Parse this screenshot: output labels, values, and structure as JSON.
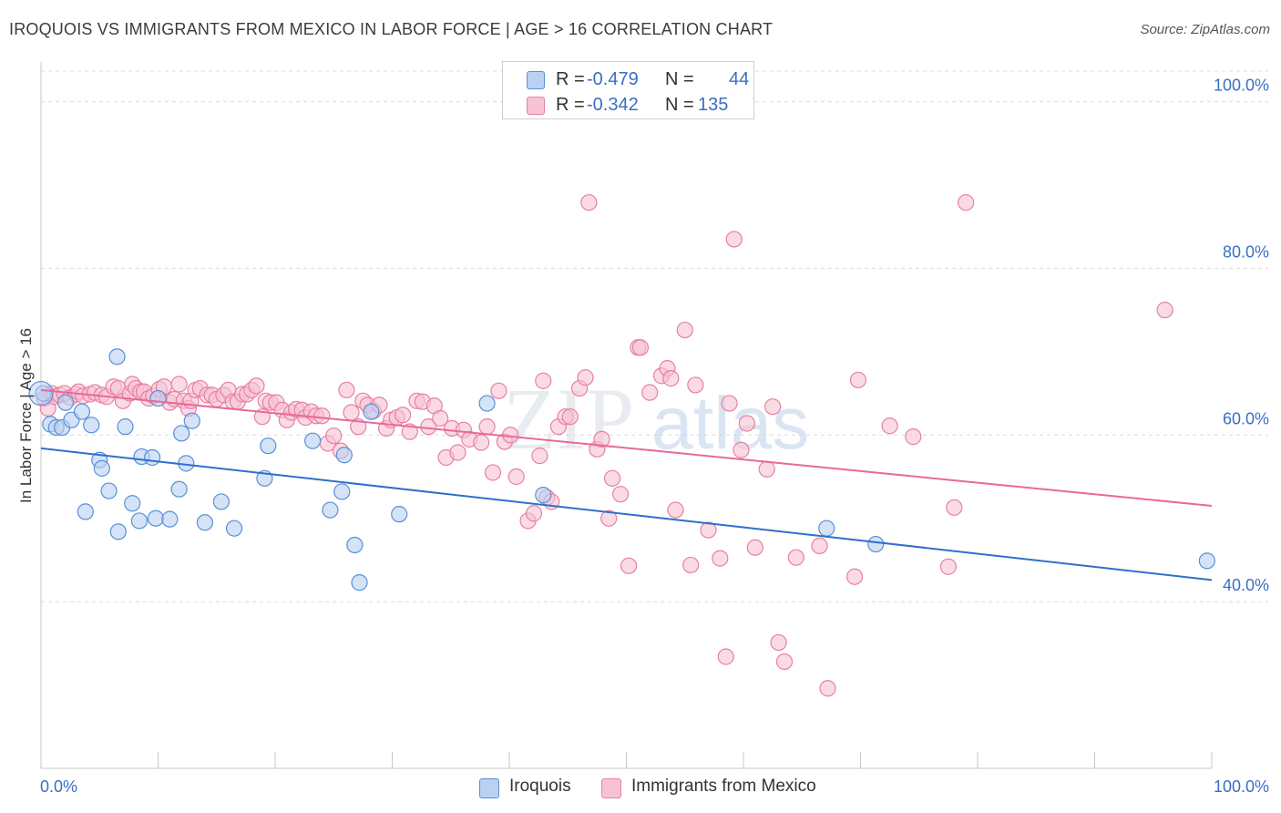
{
  "title": "IROQUOIS VS IMMIGRANTS FROM MEXICO IN LABOR FORCE | AGE > 16 CORRELATION CHART",
  "source": "Source: ZipAtlas.com",
  "colors": {
    "series1_fill": "#b9d1f2",
    "series1_stroke": "#5b8fd6",
    "series1_line": "#2f6fcc",
    "series2_fill": "#f7c3d4",
    "series2_stroke": "#e8809f",
    "series2_line": "#e9689a",
    "axis_text": "#3a6fc4",
    "grid": "#dcdcdc"
  },
  "legend_top": [
    {
      "r_label": "R =",
      "r_value": "-0.479",
      "n_label": "N =",
      "n_value": "44"
    },
    {
      "r_label": "R =",
      "r_value": "-0.342",
      "n_label": "N =",
      "n_value": "135"
    }
  ],
  "watermark": {
    "part1": "ZIP",
    "part2": "atlas"
  },
  "chart_data": {
    "type": "scatter",
    "ylabel": "In Labor Force | Age > 16",
    "xlim": [
      0,
      100
    ],
    "ylim": [
      20,
      104
    ],
    "x_tick_labels": [
      "0.0%",
      "100.0%"
    ],
    "y_ticks": [
      40,
      60,
      80,
      100
    ],
    "y_tick_labels": [
      "40.0%",
      "60.0%",
      "80.0%",
      "100.0%"
    ],
    "grid": true,
    "legend_position": "bottom-center",
    "series": [
      {
        "name": "Iroquois",
        "trend": {
          "x": [
            0,
            100
          ],
          "y": [
            58.4,
            42.6
          ]
        },
        "points": [
          [
            0.2,
            65
          ],
          [
            0.8,
            61.3
          ],
          [
            1.3,
            60.9
          ],
          [
            1.8,
            60.9
          ],
          [
            2.1,
            63.9
          ],
          [
            2.6,
            61.8
          ],
          [
            3.5,
            62.8
          ],
          [
            3.8,
            50.8
          ],
          [
            4.3,
            61.2
          ],
          [
            5.0,
            57.0
          ],
          [
            5.2,
            56.0
          ],
          [
            5.8,
            53.3
          ],
          [
            6.5,
            69.4
          ],
          [
            6.6,
            48.4
          ],
          [
            7.2,
            61.0
          ],
          [
            7.8,
            51.8
          ],
          [
            8.4,
            49.7
          ],
          [
            8.6,
            57.4
          ],
          [
            9.5,
            57.3
          ],
          [
            9.8,
            50.0
          ],
          [
            10.0,
            64.4
          ],
          [
            11.0,
            49.9
          ],
          [
            11.8,
            53.5
          ],
          [
            12.0,
            60.2
          ],
          [
            12.4,
            56.6
          ],
          [
            12.9,
            61.7
          ],
          [
            14.0,
            49.5
          ],
          [
            15.4,
            52.0
          ],
          [
            16.5,
            48.8
          ],
          [
            19.1,
            54.8
          ],
          [
            19.4,
            58.7
          ],
          [
            23.2,
            59.3
          ],
          [
            24.7,
            51.0
          ],
          [
            25.7,
            53.2
          ],
          [
            25.9,
            57.6
          ],
          [
            26.8,
            46.8
          ],
          [
            27.2,
            42.3
          ],
          [
            28.2,
            62.8
          ],
          [
            30.6,
            50.5
          ],
          [
            38.1,
            63.8
          ],
          [
            42.9,
            52.8
          ],
          [
            67.1,
            48.8
          ],
          [
            71.3,
            46.9
          ],
          [
            99.6,
            44.9
          ]
        ]
      },
      {
        "name": "Immigrants from Mexico",
        "trend": {
          "x": [
            0,
            100
          ],
          "y": [
            65.4,
            51.5
          ]
        },
        "points": [
          [
            0.3,
            64.4
          ],
          [
            0.6,
            63.2
          ],
          [
            0.9,
            65.0
          ],
          [
            1.1,
            64.6
          ],
          [
            1.6,
            64.8
          ],
          [
            2.0,
            65.0
          ],
          [
            2.5,
            64.5
          ],
          [
            3.0,
            64.9
          ],
          [
            3.2,
            65.2
          ],
          [
            3.6,
            64.7
          ],
          [
            4.2,
            64.9
          ],
          [
            4.6,
            65.1
          ],
          [
            5.2,
            64.8
          ],
          [
            5.6,
            64.6
          ],
          [
            6.2,
            65.8
          ],
          [
            6.6,
            65.6
          ],
          [
            7.0,
            64.1
          ],
          [
            7.6,
            65.0
          ],
          [
            7.8,
            66.1
          ],
          [
            8.1,
            65.6
          ],
          [
            8.5,
            65.2
          ],
          [
            8.8,
            65.2
          ],
          [
            9.2,
            64.4
          ],
          [
            9.6,
            64.7
          ],
          [
            10.1,
            65.5
          ],
          [
            10.5,
            65.8
          ],
          [
            11.0,
            63.9
          ],
          [
            11.4,
            64.3
          ],
          [
            11.8,
            66.1
          ],
          [
            12.2,
            64.1
          ],
          [
            12.6,
            63.2
          ],
          [
            12.8,
            64.1
          ],
          [
            13.2,
            65.4
          ],
          [
            13.6,
            65.6
          ],
          [
            14.2,
            64.8
          ],
          [
            14.6,
            64.8
          ],
          [
            15.0,
            64.3
          ],
          [
            15.6,
            64.8
          ],
          [
            16.0,
            65.4
          ],
          [
            16.4,
            64.0
          ],
          [
            16.8,
            64.0
          ],
          [
            17.2,
            64.9
          ],
          [
            17.6,
            64.9
          ],
          [
            18.0,
            65.4
          ],
          [
            18.4,
            65.9
          ],
          [
            18.9,
            62.2
          ],
          [
            19.2,
            64.1
          ],
          [
            19.6,
            63.9
          ],
          [
            20.1,
            63.9
          ],
          [
            20.6,
            63.0
          ],
          [
            21.0,
            61.8
          ],
          [
            21.4,
            62.7
          ],
          [
            21.8,
            63.1
          ],
          [
            22.3,
            63.0
          ],
          [
            22.6,
            62.1
          ],
          [
            23.1,
            62.8
          ],
          [
            23.5,
            62.3
          ],
          [
            24.0,
            62.3
          ],
          [
            24.5,
            59.0
          ],
          [
            25.0,
            59.9
          ],
          [
            25.6,
            58.1
          ],
          [
            26.1,
            65.4
          ],
          [
            26.5,
            62.7
          ],
          [
            27.1,
            61.0
          ],
          [
            27.5,
            64.1
          ],
          [
            27.9,
            63.6
          ],
          [
            28.4,
            62.9
          ],
          [
            28.9,
            63.6
          ],
          [
            29.5,
            60.8
          ],
          [
            29.9,
            61.8
          ],
          [
            30.4,
            62.1
          ],
          [
            30.9,
            62.4
          ],
          [
            31.5,
            60.4
          ],
          [
            32.1,
            64.1
          ],
          [
            32.6,
            64.0
          ],
          [
            33.1,
            61.0
          ],
          [
            33.6,
            63.5
          ],
          [
            34.1,
            62.0
          ],
          [
            34.6,
            57.3
          ],
          [
            35.1,
            60.8
          ],
          [
            35.6,
            57.9
          ],
          [
            36.1,
            60.6
          ],
          [
            36.6,
            59.5
          ],
          [
            37.6,
            59.1
          ],
          [
            38.1,
            61.0
          ],
          [
            38.6,
            55.5
          ],
          [
            39.1,
            65.3
          ],
          [
            39.6,
            59.2
          ],
          [
            40.1,
            60.0
          ],
          [
            40.6,
            55.0
          ],
          [
            41.6,
            49.7
          ],
          [
            42.1,
            50.6
          ],
          [
            42.6,
            57.5
          ],
          [
            42.9,
            66.5
          ],
          [
            43.2,
            52.5
          ],
          [
            43.6,
            52.0
          ],
          [
            44.2,
            61.0
          ],
          [
            44.8,
            62.2
          ],
          [
            45.2,
            62.2
          ],
          [
            46.0,
            65.6
          ],
          [
            46.5,
            66.9
          ],
          [
            46.8,
            87.9
          ],
          [
            47.5,
            58.3
          ],
          [
            47.9,
            59.5
          ],
          [
            48.5,
            50.0
          ],
          [
            48.8,
            54.8
          ],
          [
            49.5,
            52.9
          ],
          [
            50.2,
            44.3
          ],
          [
            51.0,
            70.5
          ],
          [
            51.2,
            70.5
          ],
          [
            52.0,
            65.1
          ],
          [
            53.0,
            67.1
          ],
          [
            53.5,
            68.0
          ],
          [
            53.8,
            66.8
          ],
          [
            54.2,
            51.0
          ],
          [
            55.0,
            72.6
          ],
          [
            55.5,
            44.4
          ],
          [
            55.9,
            66.0
          ],
          [
            57.0,
            48.6
          ],
          [
            58.0,
            45.2
          ],
          [
            58.5,
            33.4
          ],
          [
            58.8,
            63.8
          ],
          [
            59.2,
            83.5
          ],
          [
            59.8,
            58.2
          ],
          [
            60.3,
            61.4
          ],
          [
            61.0,
            46.5
          ],
          [
            62.0,
            55.9
          ],
          [
            62.5,
            63.4
          ],
          [
            63.0,
            35.1
          ],
          [
            63.5,
            32.8
          ],
          [
            64.5,
            45.3
          ],
          [
            66.5,
            46.7
          ],
          [
            67.2,
            29.6
          ],
          [
            69.5,
            43.0
          ],
          [
            69.8,
            66.6
          ],
          [
            72.5,
            61.1
          ],
          [
            74.5,
            59.8
          ],
          [
            77.5,
            44.2
          ],
          [
            78.0,
            51.3
          ],
          [
            79.0,
            87.9
          ],
          [
            96.0,
            75.0
          ]
        ]
      }
    ]
  }
}
